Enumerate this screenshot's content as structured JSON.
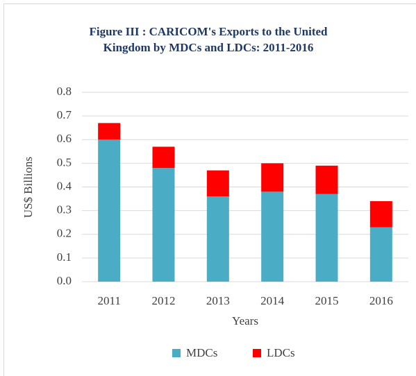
{
  "chart_data": {
    "type": "stacked_bar",
    "title": [
      "Figure III : CARICOM's Exports to the United",
      "Kingdom by MDCs and LDCs: 2011-2016"
    ],
    "y_label": "US$ Billions",
    "x_label": "Years",
    "categories": [
      "2011",
      "2012",
      "2013",
      "2014",
      "2015",
      "2016"
    ],
    "series": [
      {
        "name": "MDCs",
        "color": "#4bacc6",
        "values": [
          0.6,
          0.48,
          0.36,
          0.38,
          0.37,
          0.23
        ]
      },
      {
        "name": "LDCs",
        "color": "#ff0000",
        "values": [
          0.07,
          0.09,
          0.11,
          0.12,
          0.12,
          0.11
        ]
      }
    ],
    "ylim": [
      0,
      0.8
    ],
    "yticks": [
      {
        "value": 0,
        "label": "0.0"
      },
      0.1,
      0.2,
      0.3,
      0.4,
      0.5,
      0.6,
      0.7,
      0.8
    ],
    "grid": true,
    "legend": "bottom"
  }
}
